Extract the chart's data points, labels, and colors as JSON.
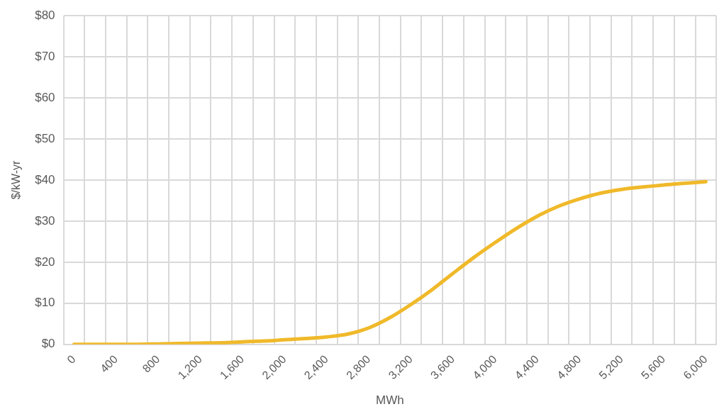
{
  "chart_data": {
    "type": "line",
    "xlabel": "MWh",
    "ylabel": "$/kW-yr",
    "categories": [
      "0",
      null,
      "400",
      null,
      "800",
      null,
      "1,200",
      null,
      "1,600",
      null,
      "2,000",
      null,
      "2,400",
      null,
      "2,800",
      null,
      "3,200",
      null,
      "3,600",
      null,
      "4,000",
      null,
      "4,400",
      null,
      "4,800",
      null,
      "5,200",
      null,
      "5,600",
      null,
      "6,000"
    ],
    "series": [
      {
        "color": "#f0b92a",
        "values": [
          0,
          0,
          0,
          0,
          0.1,
          0.2,
          0.3,
          0.4,
          0.6,
          0.8,
          1.1,
          1.4,
          1.8,
          2.5,
          4,
          6.5,
          9.7,
          13.3,
          17.3,
          21.2,
          24.8,
          28.2,
          31.2,
          33.6,
          35.4,
          36.8,
          37.7,
          38.3,
          38.8,
          39.2,
          39.6
        ]
      }
    ],
    "ylim": [
      0,
      80
    ],
    "yticks": [
      {
        "value": 0,
        "label": "$0"
      },
      {
        "value": 10,
        "label": "$10"
      },
      {
        "value": 20,
        "label": "$20"
      },
      {
        "value": 30,
        "label": "$30"
      },
      {
        "value": 40,
        "label": "$40"
      },
      {
        "value": 50,
        "label": "$50"
      },
      {
        "value": 60,
        "label": "$60"
      },
      {
        "value": 70,
        "label": "$70"
      },
      {
        "value": 80,
        "label": "$80"
      }
    ],
    "grid": true,
    "legend": false,
    "marker": "none",
    "line_style": "solid"
  }
}
